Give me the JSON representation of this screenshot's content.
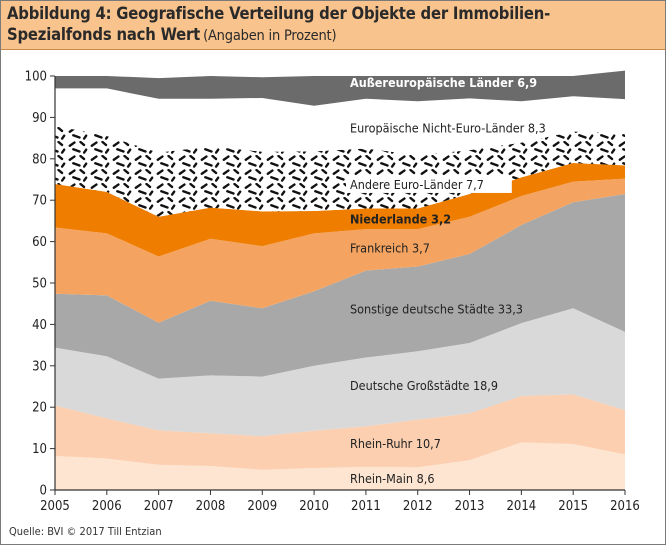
{
  "header": {
    "title_line1": "Abbildung 4: Geografische Verteilung der Objekte der Immobilien-",
    "title_line2": "Spezialfonds nach Wert",
    "subtitle": "(Angaben in Prozent)"
  },
  "source": "Quelle: BVI © 2017 Till Entzian",
  "chart_data": {
    "type": "area",
    "stacked": true,
    "title": "Abbildung 4: Geografische Verteilung der Objekte der Immobilien-Spezialfonds nach Wert",
    "subtitle": "(Angaben in Prozent)",
    "xlabel": "",
    "ylabel": "",
    "x": [
      "2005",
      "2006",
      "2007",
      "2008",
      "2009",
      "2010",
      "2011",
      "2012",
      "2013",
      "2014",
      "2015",
      "2016"
    ],
    "ylim": [
      0,
      100
    ],
    "yticks": [
      "0",
      "10",
      "20",
      "30",
      "40",
      "50",
      "60",
      "70",
      "80",
      "90",
      "100"
    ],
    "grid": false,
    "series": [
      {
        "name": "Rhein-Main",
        "value_label": "8,6",
        "color": "#fde5d1",
        "values": [
          8.2,
          7.6,
          6.1,
          5.8,
          4.9,
          5.3,
          5.6,
          5.5,
          7.2,
          11.5,
          11.1,
          8.6
        ]
      },
      {
        "name": "Rhein-Ruhr",
        "value_label": "10,7",
        "color": "#fbcfb0",
        "values": [
          12.2,
          9.7,
          8.3,
          7.9,
          8.1,
          9.0,
          9.8,
          11.5,
          11.3,
          11.2,
          12.0,
          10.7
        ]
      },
      {
        "name": "Deutsche Großstädte",
        "value_label": "18,9",
        "color": "#d9d9d9",
        "values": [
          14.0,
          15.0,
          12.5,
          14.0,
          14.4,
          15.7,
          16.6,
          16.5,
          17.0,
          17.6,
          20.8,
          18.9
        ]
      },
      {
        "name": "Sonstige deutsche Städte",
        "value_label": "33,3",
        "color": "#a8a8a8",
        "values": [
          13.0,
          14.7,
          13.5,
          18.0,
          16.5,
          18.0,
          21.0,
          20.5,
          21.5,
          23.7,
          25.6,
          33.3
        ]
      },
      {
        "name": "Frankreich",
        "value_label": "3,7",
        "color": "#f4a460",
        "values": [
          16.0,
          15.0,
          16.0,
          15.0,
          15.0,
          14.0,
          10.0,
          9.0,
          9.0,
          7.0,
          5.0,
          3.7
        ]
      },
      {
        "name": "Niederlande",
        "value_label": "3,2",
        "color": "#ee7d00",
        "values": [
          10.5,
          10.0,
          9.6,
          7.5,
          8.4,
          5.4,
          5.0,
          5.0,
          5.5,
          4.5,
          4.5,
          3.2
        ]
      },
      {
        "name": "Andere Euro-Länder",
        "value_label": "7,7",
        "color": "#1a1a1a",
        "values": [
          14.1,
          13.5,
          15.5,
          14.8,
          14.4,
          14.4,
          14.5,
          12.9,
          10.6,
          8.4,
          7.6,
          7.7
        ]
      },
      {
        "name": "Europäische Nicht-Euro-Länder",
        "value_label": "8,3",
        "color": "#ffffff",
        "values": [
          9.0,
          11.5,
          13.0,
          11.5,
          13.0,
          11.0,
          12.0,
          13.0,
          12.5,
          10.0,
          8.5,
          8.3
        ]
      },
      {
        "name": "Außereuropäische Länder",
        "value_label": "6,9",
        "color": "#6b6b6b",
        "values": [
          3.0,
          3.0,
          5.0,
          5.5,
          5.0,
          7.2,
          5.5,
          6.1,
          5.4,
          6.1,
          4.9,
          6.9
        ]
      }
    ],
    "colors": {
      "header_bg": "#f8c38c",
      "axis": "#333333",
      "text": "#222222"
    }
  }
}
